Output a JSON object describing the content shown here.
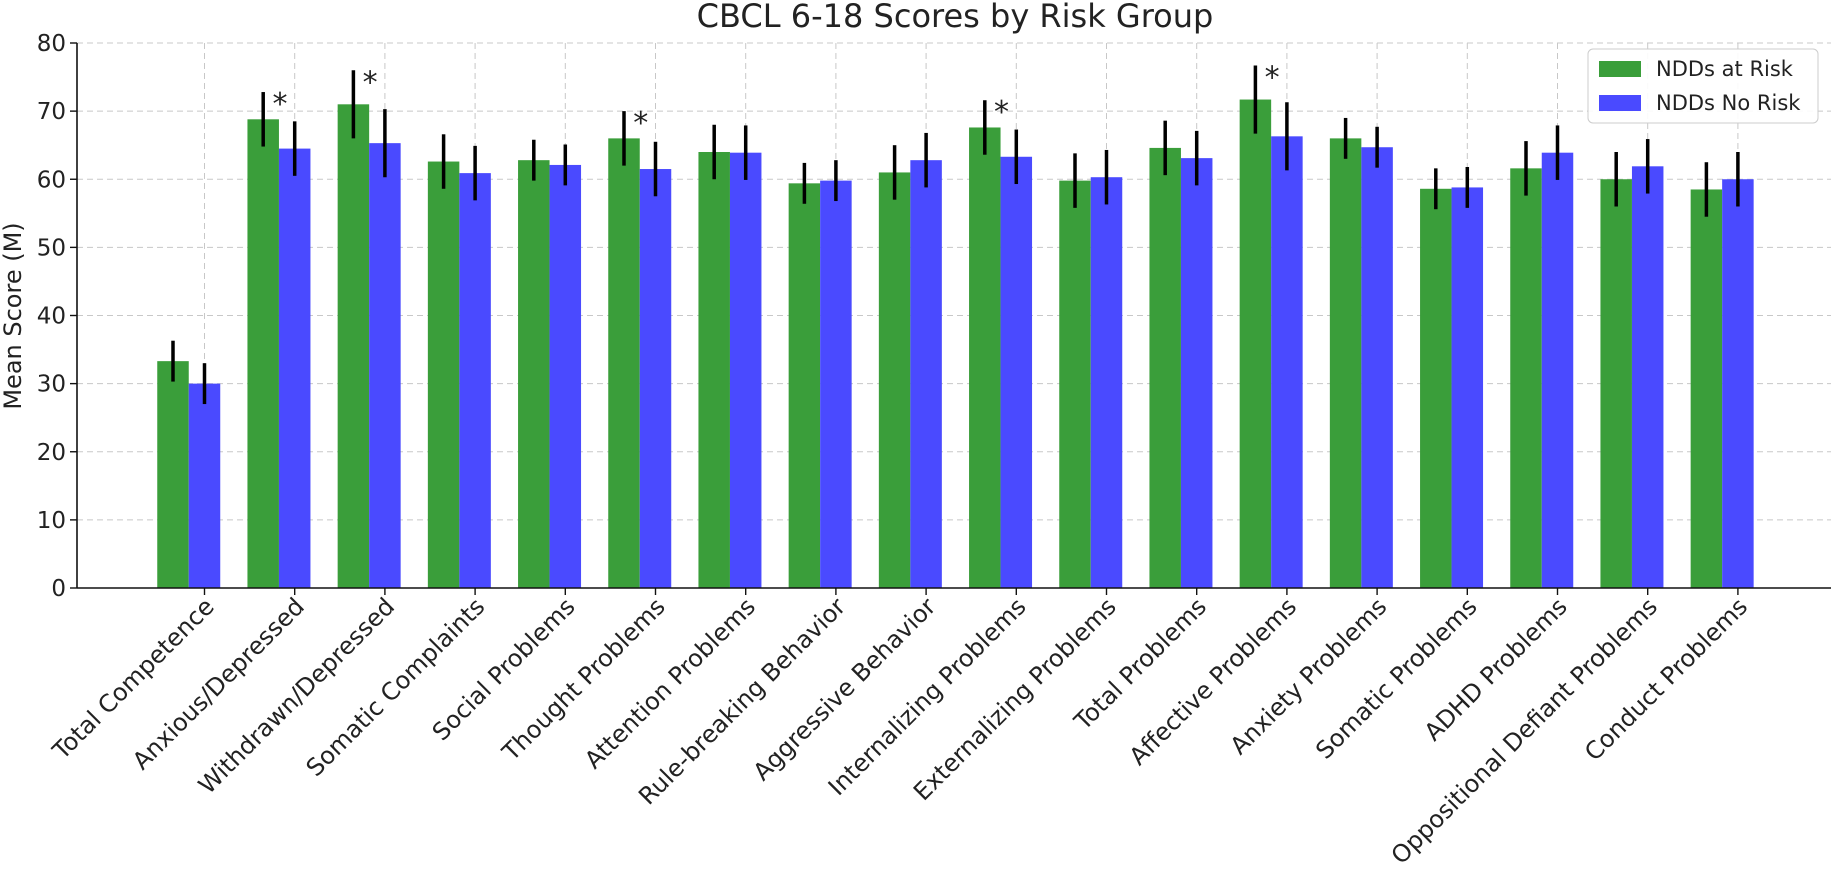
{
  "chart_data": {
    "type": "bar",
    "title": "CBCL 6-18 Scores by Risk Group",
    "xlabel": "",
    "ylabel": "Mean Score (M)",
    "ylim": [
      0,
      80
    ],
    "yticks": [
      0,
      10,
      20,
      30,
      40,
      50,
      60,
      70,
      80
    ],
    "grid": true,
    "legend_position": "top-right",
    "categories": [
      "Total Competence",
      "Anxious/Depressed",
      "Withdrawn/Depressed",
      "Somatic Complaints",
      "Social Problems",
      "Thought Problems",
      "Attention Problems",
      "Rule-breaking Behavior",
      "Aggressive Behavior",
      "Internalizing Problems",
      "Externalizing Problems",
      "Total Problems",
      "Affective Problems",
      "Anxiety Problems",
      "Somatic Problems",
      "ADHD Problems",
      "Oppositional Defiant Problems",
      "Conduct Problems"
    ],
    "series": [
      {
        "name": "NDDs at Risk",
        "color": "#3a9e3a",
        "values": [
          33.3,
          68.8,
          71.0,
          62.6,
          62.8,
          66.0,
          64.0,
          59.4,
          61.0,
          67.6,
          59.8,
          64.6,
          71.7,
          66.0,
          58.6,
          61.6,
          60.0,
          58.5
        ],
        "errors": [
          3.0,
          4.0,
          5.0,
          4.0,
          3.0,
          4.0,
          4.0,
          3.0,
          4.0,
          4.0,
          4.0,
          4.0,
          5.0,
          3.0,
          3.0,
          4.0,
          4.0,
          4.0
        ]
      },
      {
        "name": "NDDs No Risk",
        "color": "#4a4aff",
        "values": [
          30.0,
          64.5,
          65.3,
          60.9,
          62.1,
          61.5,
          63.9,
          59.8,
          62.8,
          63.3,
          60.3,
          63.1,
          66.3,
          64.7,
          58.8,
          63.9,
          61.9,
          60.0
        ],
        "errors": [
          3.0,
          4.0,
          5.0,
          4.0,
          3.0,
          4.0,
          4.0,
          3.0,
          4.0,
          4.0,
          4.0,
          4.0,
          5.0,
          3.0,
          3.0,
          4.0,
          4.0,
          4.0
        ]
      }
    ],
    "significance_marker": "*",
    "significant_categories": [
      "Anxious/Depressed",
      "Withdrawn/Depressed",
      "Thought Problems",
      "Internalizing Problems",
      "Affective Problems"
    ]
  }
}
